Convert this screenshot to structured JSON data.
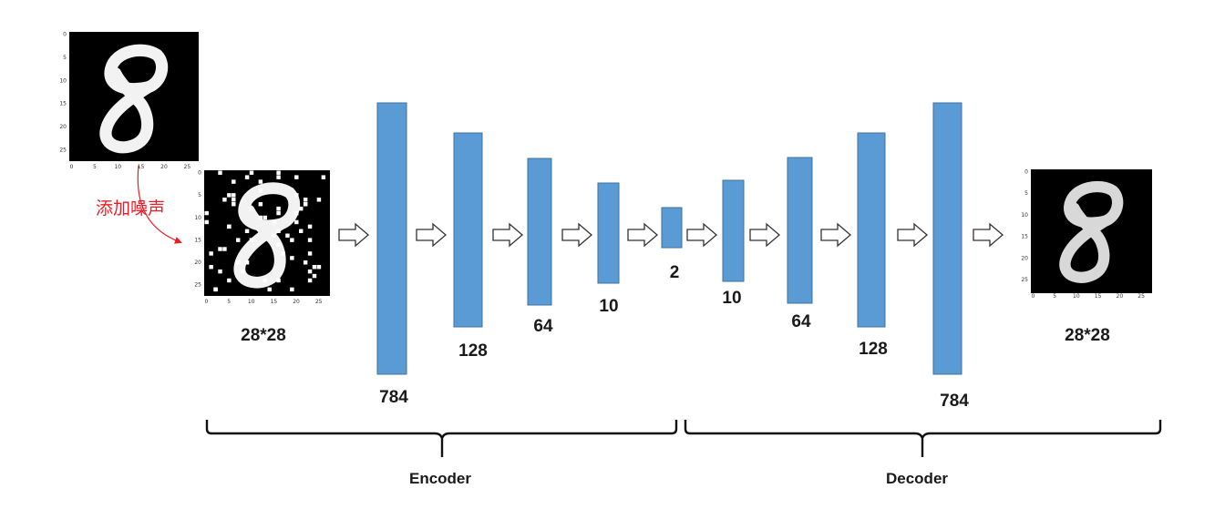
{
  "note_label": "添加噪声",
  "image_axis_ticks": [
    "0",
    "5",
    "10",
    "15",
    "20",
    "25"
  ],
  "size_labels": {
    "input": "28*28",
    "output": "28*28"
  },
  "encoder_layers": [
    "784",
    "128",
    "64",
    "10"
  ],
  "latent_layer": "2",
  "decoder_layers": [
    "10",
    "64",
    "128",
    "784"
  ],
  "sections": {
    "encoder": "Encoder",
    "decoder": "Decoder"
  },
  "colors": {
    "layer_fill": "#5b9bd5",
    "layer_stroke": "#41719c",
    "note": "#ee1c24"
  }
}
